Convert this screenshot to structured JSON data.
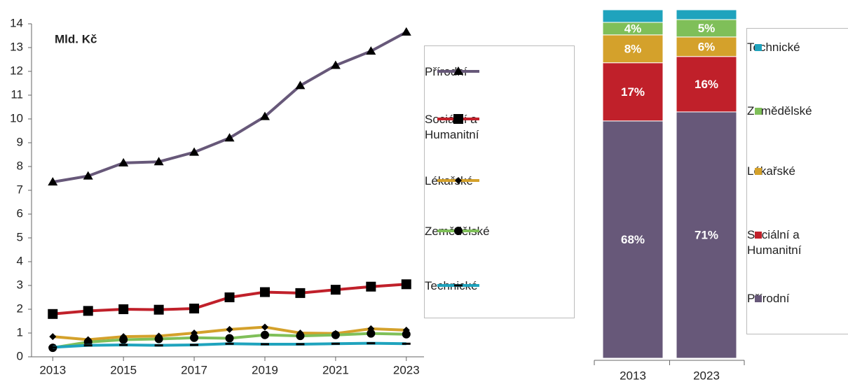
{
  "chart_data": [
    {
      "type": "line",
      "annotation": "Mld. Kč",
      "x": [
        2013,
        2014,
        2015,
        2016,
        2017,
        2018,
        2019,
        2020,
        2021,
        2022,
        2023
      ],
      "series": [
        {
          "name": "Přírodní",
          "color": "#675879",
          "marker": "triangle",
          "values": [
            7.35,
            7.6,
            8.15,
            8.2,
            8.6,
            9.2,
            10.1,
            11.4,
            12.25,
            12.85,
            13.65
          ]
        },
        {
          "name": "Sociální a Humanitní",
          "color": "#c0202a",
          "marker": "square",
          "values": [
            1.8,
            1.93,
            2.0,
            1.98,
            2.03,
            2.5,
            2.72,
            2.68,
            2.82,
            2.95,
            3.05
          ]
        },
        {
          "name": "Lékařské",
          "color": "#d4a12b",
          "marker": "diamond",
          "values": [
            0.85,
            0.72,
            0.85,
            0.87,
            1.0,
            1.15,
            1.25,
            1.0,
            0.98,
            1.18,
            1.12
          ]
        },
        {
          "name": "Zemědělské",
          "color": "#7fbf59",
          "marker": "circle",
          "values": [
            0.38,
            0.62,
            0.72,
            0.75,
            0.8,
            0.78,
            0.92,
            0.88,
            0.92,
            0.98,
            0.95
          ]
        },
        {
          "name": "Technické",
          "color": "#1fa3bd",
          "marker": "dash",
          "values": [
            0.4,
            0.48,
            0.5,
            0.48,
            0.5,
            0.55,
            0.53,
            0.53,
            0.55,
            0.57,
            0.55
          ]
        }
      ],
      "xlim": [
        2012.4,
        2023.5
      ],
      "xticks": [
        2013,
        2015,
        2017,
        2019,
        2021,
        2023
      ],
      "ylim": [
        0,
        14
      ],
      "yticks": [
        0,
        1,
        2,
        3,
        4,
        5,
        6,
        7,
        8,
        9,
        10,
        11,
        12,
        13,
        14
      ],
      "legend": "right"
    },
    {
      "type": "stacked_bar",
      "categories": [
        "2013",
        "2023"
      ],
      "series": [
        {
          "name": "Přírodní",
          "color": "#675879",
          "values": [
            68.1,
            70.7
          ],
          "value_labels": [
            "68%",
            "71%"
          ]
        },
        {
          "name": "Sociální a Humanitní",
          "color": "#c0202a",
          "values": [
            16.7,
            15.9
          ],
          "value_labels": [
            "17%",
            "16%"
          ]
        },
        {
          "name": "Lékařské",
          "color": "#d4a12b",
          "values": [
            8.0,
            5.6
          ],
          "value_labels": [
            "8%",
            "6%"
          ]
        },
        {
          "name": "Zemědělské",
          "color": "#7fbf59",
          "values": [
            3.6,
            5.0
          ],
          "value_labels": [
            "4%",
            "5%"
          ]
        },
        {
          "name": "Technické",
          "color": "#1fa3bd",
          "values": [
            3.6,
            2.8
          ],
          "value_labels": [
            null,
            null
          ]
        }
      ],
      "ylim": [
        0,
        100
      ],
      "legend": "right"
    }
  ]
}
